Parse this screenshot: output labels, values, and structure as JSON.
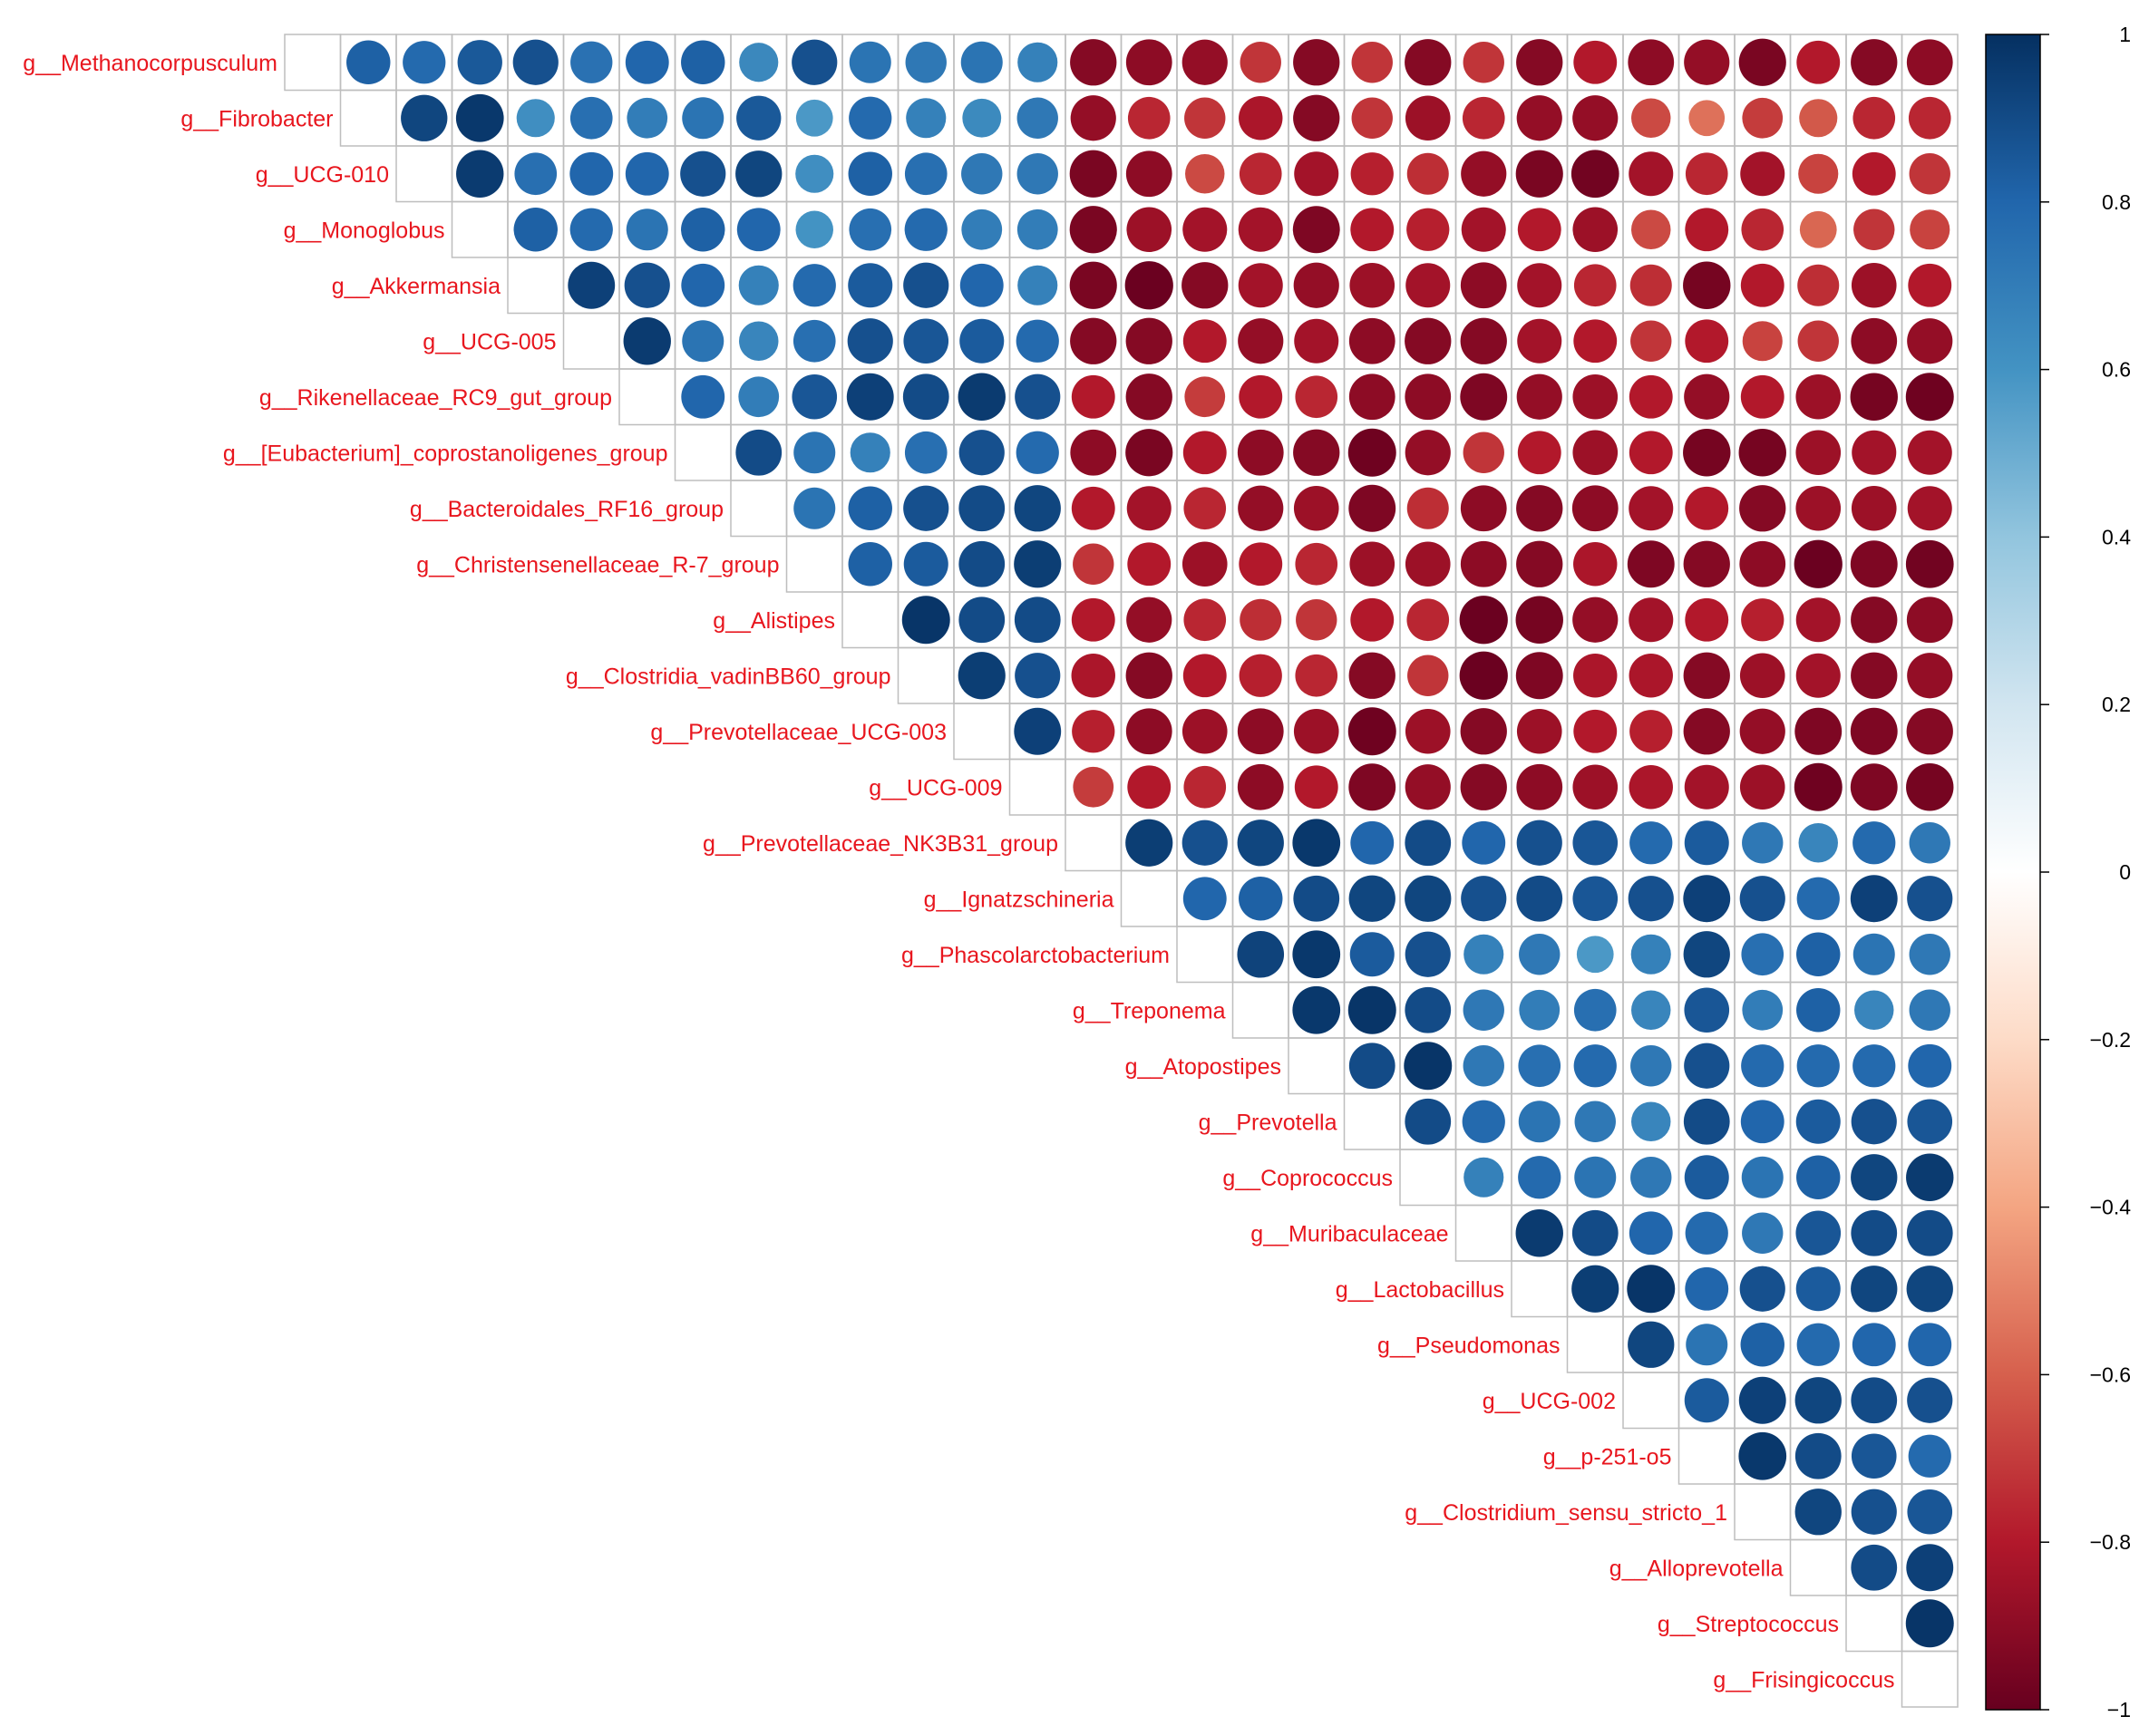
{
  "chart_data": {
    "type": "heatmap",
    "subtype": "correlation-circle-upper-triangle",
    "label_color": "#E8161E",
    "grid_color": "#BEBEBE",
    "variables": [
      "g__Methanocorpusculum",
      "g__Fibrobacter",
      "g__UCG-010",
      "g__Monoglobus",
      "g__Akkermansia",
      "g__UCG-005",
      "g__Rikenellaceae_RC9_gut_group",
      "g__[Eubacterium]_coprostanoligenes_group",
      "g__Bacteroidales_RF16_group",
      "g__Christensenellaceae_R-7_group",
      "g__Alistipes",
      "g__Clostridia_vadinBB60_group",
      "g__Prevotellaceae_UCG-003",
      "g__UCG-009",
      "g__Prevotellaceae_NK3B31_group",
      "g__Ignatzschineria",
      "g__Phascolarctobacterium",
      "g__Treponema",
      "g__Atopostipes",
      "g__Prevotella",
      "g__Coprococcus",
      "g__Muribaculaceae",
      "g__Lactobacillus",
      "g__Pseudomonas",
      "g__UCG-002",
      "g__p-251-o5",
      "g__Clostridium_sensu_stricto_1",
      "g__Alloprevotella",
      "g__Streptococcus",
      "g__Frisingicoccus"
    ],
    "upper_triangle": [
      [
        0.82,
        0.78,
        0.85,
        0.88,
        0.75,
        0.8,
        0.82,
        0.65,
        0.88,
        0.74,
        0.72,
        0.74,
        0.68,
        -0.92,
        -0.9,
        -0.88,
        -0.72,
        -0.92,
        -0.72,
        -0.92,
        -0.72,
        -0.92,
        -0.8,
        -0.9,
        -0.88,
        -0.95,
        -0.8,
        -0.92,
        -0.9
      ],
      [
        0.92,
        0.97,
        0.62,
        0.76,
        0.7,
        0.74,
        0.85,
        0.58,
        0.78,
        0.68,
        0.64,
        0.72,
        -0.88,
        -0.76,
        -0.72,
        -0.82,
        -0.92,
        -0.72,
        -0.86,
        -0.76,
        -0.88,
        -0.88,
        -0.66,
        -0.55,
        -0.7,
        -0.62,
        -0.76,
        -0.76
      ],
      [
        0.96,
        0.76,
        0.8,
        0.8,
        0.88,
        0.92,
        0.62,
        0.82,
        0.76,
        0.72,
        0.72,
        -0.95,
        -0.9,
        -0.66,
        -0.76,
        -0.84,
        -0.78,
        -0.74,
        -0.88,
        -0.95,
        -0.97,
        -0.84,
        -0.76,
        -0.84,
        -0.68,
        -0.8,
        -0.72
      ],
      [
        0.82,
        0.78,
        0.74,
        0.82,
        0.8,
        0.6,
        0.76,
        0.78,
        0.7,
        0.7,
        -0.95,
        -0.86,
        -0.84,
        -0.84,
        -0.94,
        -0.8,
        -0.78,
        -0.84,
        -0.8,
        -0.86,
        -0.66,
        -0.8,
        -0.76,
        -0.58,
        -0.72,
        -0.68
      ],
      [
        0.94,
        0.88,
        0.8,
        0.68,
        0.78,
        0.84,
        0.88,
        0.8,
        0.68,
        -0.95,
        -0.99,
        -0.92,
        -0.84,
        -0.88,
        -0.86,
        -0.84,
        -0.9,
        -0.84,
        -0.76,
        -0.74,
        -0.96,
        -0.8,
        -0.74,
        -0.86,
        -0.8
      ],
      [
        0.96,
        0.74,
        0.66,
        0.76,
        0.88,
        0.86,
        0.84,
        0.78,
        -0.92,
        -0.92,
        -0.8,
        -0.88,
        -0.84,
        -0.9,
        -0.92,
        -0.92,
        -0.84,
        -0.8,
        -0.72,
        -0.8,
        -0.68,
        -0.72,
        -0.9,
        -0.88
      ],
      [
        0.8,
        0.7,
        0.86,
        0.94,
        0.9,
        0.96,
        0.88,
        -0.8,
        -0.92,
        -0.7,
        -0.8,
        -0.76,
        -0.9,
        -0.9,
        -0.94,
        -0.88,
        -0.86,
        -0.8,
        -0.88,
        -0.8,
        -0.86,
        -0.96,
        -0.98
      ],
      [
        0.9,
        0.74,
        0.68,
        0.76,
        0.88,
        0.78,
        -0.9,
        -0.95,
        -0.8,
        -0.9,
        -0.92,
        -0.98,
        -0.88,
        -0.72,
        -0.8,
        -0.86,
        -0.8,
        -0.96,
        -0.96,
        -0.86,
        -0.84,
        -0.84
      ],
      [
        0.74,
        0.82,
        0.88,
        0.9,
        0.92,
        -0.8,
        -0.84,
        -0.76,
        -0.88,
        -0.86,
        -0.94,
        -0.74,
        -0.9,
        -0.92,
        -0.9,
        -0.84,
        -0.8,
        -0.92,
        -0.86,
        -0.86,
        -0.84
      ],
      [
        0.82,
        0.84,
        0.9,
        0.95,
        -0.72,
        -0.8,
        -0.86,
        -0.8,
        -0.76,
        -0.86,
        -0.86,
        -0.9,
        -0.92,
        -0.82,
        -0.94,
        -0.92,
        -0.9,
        -0.99,
        -0.94,
        -0.97
      ],
      [
        0.98,
        0.9,
        0.9,
        -0.8,
        -0.88,
        -0.76,
        -0.74,
        -0.72,
        -0.8,
        -0.76,
        -0.99,
        -0.96,
        -0.88,
        -0.84,
        -0.8,
        -0.78,
        -0.84,
        -0.92,
        -0.9
      ],
      [
        0.95,
        0.88,
        -0.82,
        -0.92,
        -0.8,
        -0.78,
        -0.76,
        -0.92,
        -0.72,
        -0.99,
        -0.94,
        -0.82,
        -0.82,
        -0.92,
        -0.86,
        -0.84,
        -0.92,
        -0.88
      ],
      [
        0.94,
        -0.78,
        -0.9,
        -0.86,
        -0.9,
        -0.86,
        -0.98,
        -0.86,
        -0.92,
        -0.86,
        -0.8,
        -0.78,
        -0.92,
        -0.88,
        -0.94,
        -0.94,
        -0.92
      ],
      [
        -0.7,
        -0.8,
        -0.76,
        -0.9,
        -0.8,
        -0.94,
        -0.88,
        -0.92,
        -0.9,
        -0.86,
        -0.82,
        -0.84,
        -0.86,
        -0.98,
        -0.94,
        -0.96
      ],
      [
        0.95,
        0.88,
        0.92,
        0.97,
        0.8,
        0.9,
        0.8,
        0.88,
        0.86,
        0.78,
        0.84,
        0.72,
        0.66,
        0.78,
        0.72
      ],
      [
        0.8,
        0.82,
        0.9,
        0.92,
        0.92,
        0.88,
        0.9,
        0.86,
        0.88,
        0.94,
        0.88,
        0.78,
        0.94,
        0.88
      ],
      [
        0.93,
        0.97,
        0.84,
        0.88,
        0.68,
        0.72,
        0.58,
        0.68,
        0.92,
        0.76,
        0.82,
        0.74,
        0.72
      ],
      [
        0.97,
        0.98,
        0.9,
        0.72,
        0.7,
        0.76,
        0.66,
        0.86,
        0.7,
        0.82,
        0.66,
        0.72
      ],
      [
        0.9,
        0.98,
        0.72,
        0.76,
        0.78,
        0.72,
        0.88,
        0.78,
        0.78,
        0.78,
        0.8
      ],
      [
        0.9,
        0.78,
        0.74,
        0.72,
        0.66,
        0.9,
        0.8,
        0.84,
        0.88,
        0.86
      ],
      [
        0.68,
        0.78,
        0.74,
        0.72,
        0.84,
        0.74,
        0.82,
        0.92,
        0.96
      ],
      [
        0.96,
        0.9,
        0.8,
        0.78,
        0.72,
        0.86,
        0.9,
        0.9
      ],
      [
        0.95,
        0.98,
        0.8,
        0.88,
        0.84,
        0.92,
        0.92
      ],
      [
        0.92,
        0.74,
        0.82,
        0.78,
        0.8,
        0.8
      ],
      [
        0.84,
        0.94,
        0.92,
        0.9,
        0.88
      ],
      [
        0.97,
        0.9,
        0.86,
        0.78
      ],
      [
        0.92,
        0.88,
        0.86
      ],
      [
        0.9,
        0.94
      ],
      [
        0.98
      ]
    ],
    "colorbar": {
      "range": [
        -1,
        1
      ],
      "ticks": [
        "1",
        "0.8",
        "0.6",
        "0.4",
        "0.2",
        "0",
        "−0.2",
        "−0.4",
        "−0.6",
        "−0.8",
        "−1"
      ],
      "tick_values": [
        1,
        0.8,
        0.6,
        0.4,
        0.2,
        0,
        -0.2,
        -0.4,
        -0.6,
        -0.8,
        -1
      ],
      "palette": [
        "#67001F",
        "#B2182B",
        "#D6604D",
        "#F4A582",
        "#FDDBC7",
        "#FFFFFF",
        "#D1E5F0",
        "#92C5DE",
        "#4393C3",
        "#2166AC",
        "#053061"
      ]
    }
  }
}
